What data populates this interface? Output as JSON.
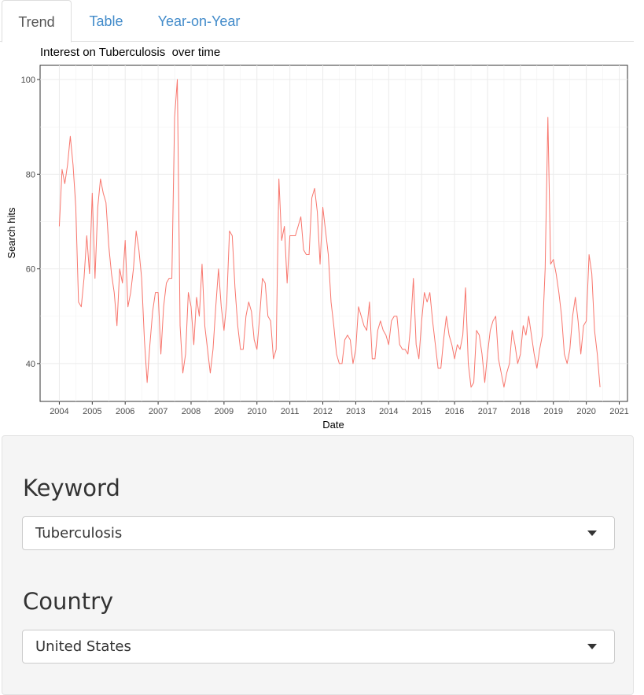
{
  "tabs": [
    {
      "label": "Trend",
      "active": true
    },
    {
      "label": "Table",
      "active": false
    },
    {
      "label": "Year-on-Year",
      "active": false
    }
  ],
  "chart_data": {
    "type": "line",
    "title": "Interest on Tuberculosis  over time",
    "xlabel": "Date",
    "ylabel": "Search hits",
    "x_ticks": [
      "2004",
      "2005",
      "2006",
      "2007",
      "2008",
      "2009",
      "2010",
      "2011",
      "2012",
      "2013",
      "2014",
      "2015",
      "2016",
      "2017",
      "2018",
      "2019",
      "2020",
      "2021"
    ],
    "y_ticks": [
      40,
      60,
      80,
      100
    ],
    "xlim": [
      "2003-06",
      "2021-04"
    ],
    "ylim": [
      32,
      103
    ],
    "grid": true,
    "line_color": "#f8766d",
    "series": [
      {
        "x_start": "2004-01",
        "x_step": "1 month",
        "values": [
          69,
          81,
          78,
          82,
          88,
          82,
          73,
          53,
          52,
          58,
          67,
          59,
          76,
          58,
          73,
          79,
          76,
          74,
          65,
          59,
          55,
          48,
          60,
          57,
          66,
          52,
          55,
          60,
          68,
          64,
          58,
          45,
          36,
          44,
          51,
          55,
          55,
          42,
          52,
          57,
          58,
          58,
          92,
          100,
          48,
          38,
          42,
          55,
          52,
          44,
          54,
          50,
          61,
          48,
          43,
          38,
          43,
          52,
          60,
          52,
          47,
          53,
          68,
          67,
          56,
          48,
          43,
          43,
          50,
          53,
          51,
          45,
          43,
          50,
          58,
          57,
          50,
          49,
          41,
          43,
          79,
          66,
          69,
          57,
          67,
          67,
          67,
          69,
          71,
          64,
          63,
          63,
          75,
          77,
          72,
          61,
          73,
          68,
          63,
          53,
          48,
          42,
          40,
          40,
          45,
          46,
          45,
          40,
          43,
          52,
          50,
          48,
          47,
          53,
          41,
          41,
          47,
          49,
          47,
          46,
          44,
          49,
          50,
          50,
          44,
          43,
          43,
          42,
          48,
          58,
          44,
          41,
          49,
          55,
          53,
          55,
          49,
          44,
          39,
          39,
          45,
          50,
          46,
          44,
          41,
          44,
          43,
          46,
          56,
          40,
          35,
          36,
          47,
          46,
          42,
          36,
          42,
          47,
          49,
          50,
          41,
          38,
          35,
          38,
          40,
          47,
          44,
          40,
          42,
          48,
          46,
          50,
          46,
          42,
          39,
          43,
          46,
          60,
          92,
          61,
          62,
          59,
          55,
          50,
          42,
          40,
          43,
          50,
          54,
          49,
          42,
          48,
          49,
          63,
          59,
          47,
          42,
          35
        ]
      }
    ]
  },
  "controls": {
    "keyword_label": "Keyword",
    "keyword_value": "Tuberculosis",
    "country_label": "Country",
    "country_value": "United States"
  }
}
